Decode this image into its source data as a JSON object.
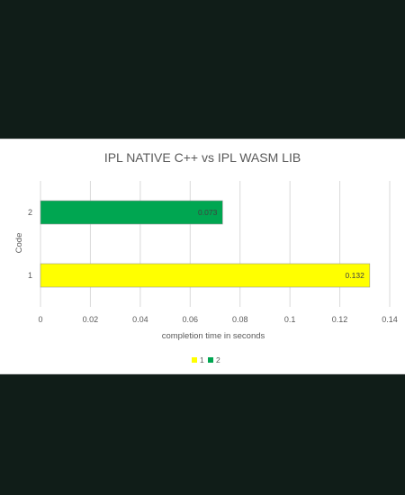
{
  "chart_data": {
    "type": "bar",
    "orientation": "horizontal",
    "title": "IPL NATIVE C++ vs IPL WASM LIB",
    "xlabel": "completion time in seconds",
    "ylabel": "Code",
    "categories": [
      "1",
      "2"
    ],
    "values": [
      0.132,
      0.073
    ],
    "data_labels": [
      "0.132",
      "0.073"
    ],
    "colors": [
      "#ffff00",
      "#00a651"
    ],
    "xlim": [
      0,
      0.14
    ],
    "x_ticks": [
      "0",
      "0.02",
      "0.04",
      "0.06",
      "0.08",
      "0.1",
      "0.12",
      "0.14"
    ],
    "grid": true,
    "legend_position": "bottom",
    "legend": [
      {
        "label": "1",
        "color": "#ffff00"
      },
      {
        "label": "2",
        "color": "#00a651"
      }
    ]
  }
}
